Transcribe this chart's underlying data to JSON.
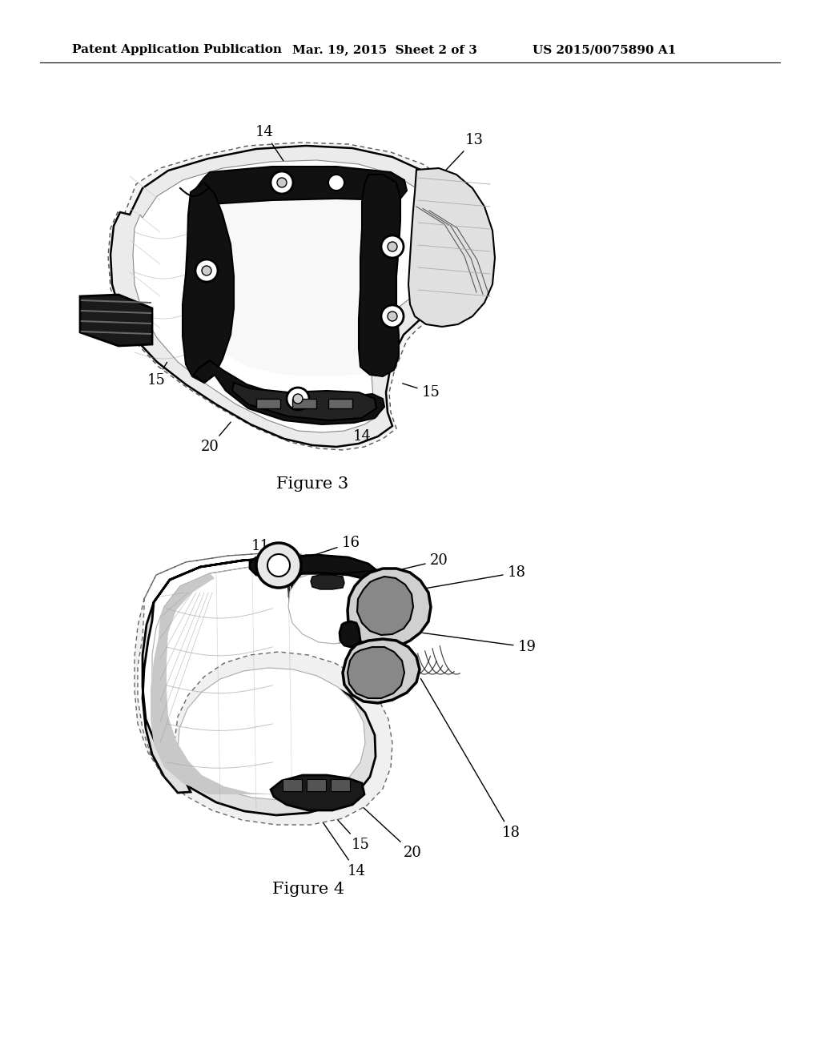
{
  "background_color": "#ffffff",
  "header_left": "Patent Application Publication",
  "header_mid": "Mar. 19, 2015  Sheet 2 of 3",
  "header_right": "US 2015/0075890 A1",
  "header_fontsize": 11,
  "fig3_caption": "Figure 3",
  "fig4_caption": "Figure 4",
  "text_color": "#000000",
  "label_fontsize": 13
}
